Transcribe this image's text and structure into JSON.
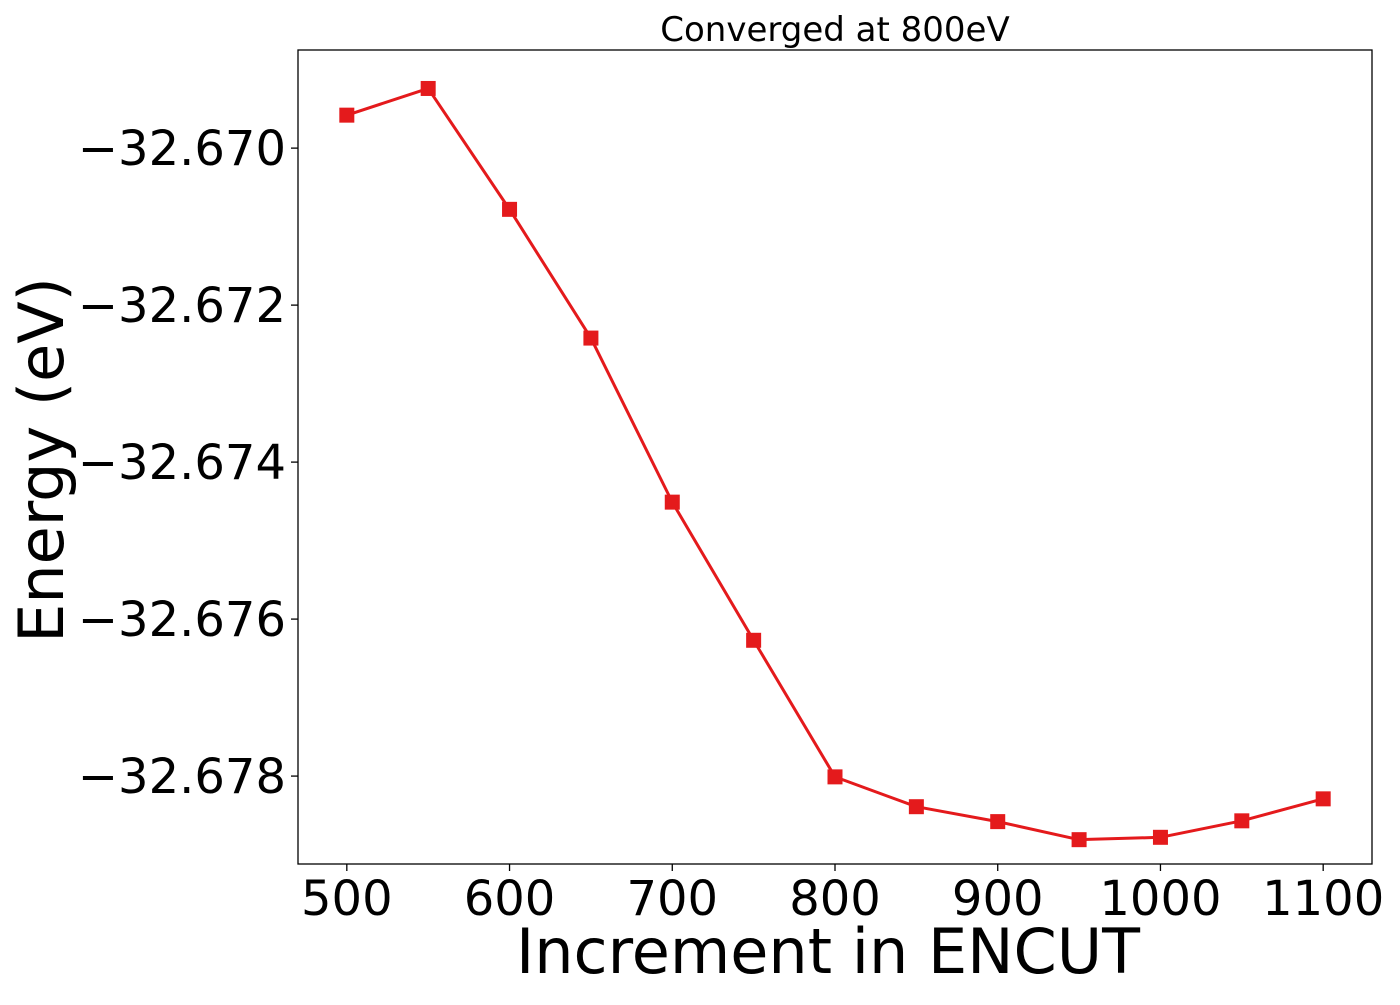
{
  "chart_data": {
    "type": "line",
    "title": "Converged at 800eV",
    "xlabel": "Increment in ENCUT",
    "ylabel": "Energy (eV)",
    "xlim": [
      470,
      1130
    ],
    "ylim": [
      -32.67912,
      -32.66875
    ],
    "xticks": [
      500,
      600,
      700,
      800,
      900,
      1000,
      1100
    ],
    "xtick_labels": [
      "500",
      "600",
      "700",
      "800",
      "900",
      "1000",
      "1100"
    ],
    "yticks": [
      -32.67,
      -32.672,
      -32.674,
      -32.676,
      -32.678
    ],
    "ytick_labels": [
      "−32.670",
      "−32.672",
      "−32.674",
      "−32.676",
      "−32.678"
    ],
    "grid": false,
    "legend": false,
    "series": [
      {
        "color": "#e41a1c",
        "marker": "square",
        "x": [
          500,
          550,
          600,
          650,
          700,
          750,
          800,
          850,
          900,
          950,
          1000,
          1050,
          1100
        ],
        "y": [
          -32.66958,
          -32.66924,
          -32.67078,
          -32.67242,
          -32.67451,
          -32.67627,
          -32.67801,
          -32.67839,
          -32.67858,
          -32.67881,
          -32.67878,
          -32.67857,
          -32.67829
        ]
      }
    ]
  }
}
